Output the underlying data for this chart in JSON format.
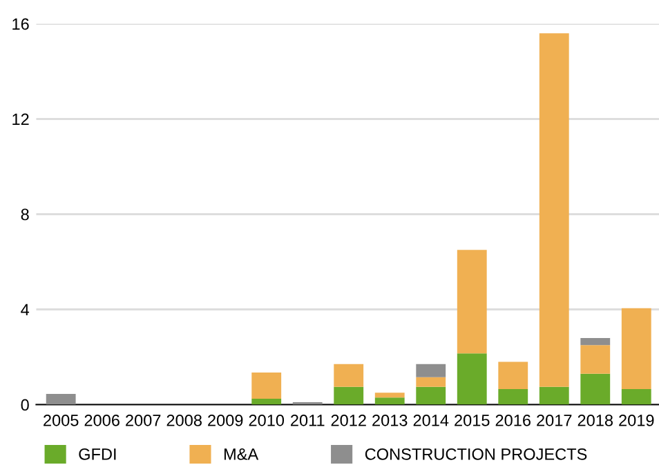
{
  "chart_data": {
    "type": "bar",
    "stacked": true,
    "categories": [
      "2005",
      "2006",
      "2007",
      "2008",
      "2009",
      "2010",
      "2011",
      "2012",
      "2013",
      "2014",
      "2015",
      "2016",
      "2017",
      "2018",
      "2019"
    ],
    "series": [
      {
        "name": "GFDI",
        "color": "#6aab2a",
        "values": [
          0,
          0,
          0,
          0,
          0,
          0.25,
          0,
          0.75,
          0.3,
          0.75,
          2.15,
          0.65,
          0.75,
          1.3,
          0.65
        ]
      },
      {
        "name": "M&A",
        "color": "#f0b052",
        "values": [
          0,
          0,
          0,
          0,
          0,
          1.1,
          0,
          0.95,
          0.2,
          0.4,
          4.35,
          1.15,
          14.85,
          1.2,
          3.4
        ]
      },
      {
        "name": "CONSTRUCTION PROJECTS",
        "color": "#8e8e8e",
        "values": [
          0.45,
          0,
          0,
          0,
          0,
          0,
          0.1,
          0,
          0,
          0.55,
          0,
          0,
          0,
          0.3,
          0
        ]
      }
    ],
    "ylim": [
      0,
      16
    ],
    "yticks": [
      0,
      4,
      8,
      12,
      16
    ],
    "grid": "y",
    "legend": "bottom"
  }
}
